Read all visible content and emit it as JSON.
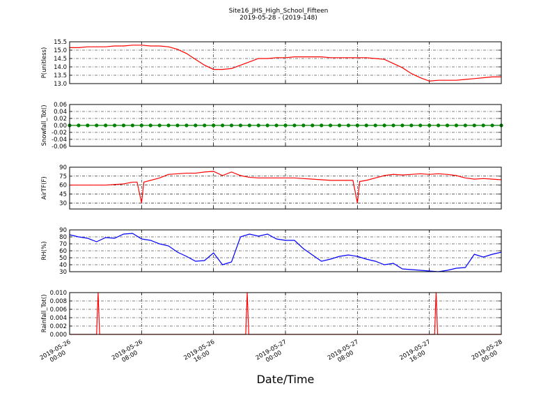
{
  "title": "Site16_JHS_High_School_Fifteen",
  "subtitle": "2019-05-28 - (2019-148)",
  "xlabel": "Date/Time",
  "xlim": [
    "2019-05-26 00:00",
    "2019-05-28 00:00"
  ],
  "xticks": [
    {
      "value": "2019-05-26 00:00",
      "label": [
        "2019-05-26",
        "00:00"
      ]
    },
    {
      "value": "2019-05-26 08:00",
      "label": [
        "2019-05-26",
        "08:00"
      ]
    },
    {
      "value": "2019-05-26 16:00",
      "label": [
        "2019-05-26",
        "16:00"
      ]
    },
    {
      "value": "2019-05-27 00:00",
      "label": [
        "2019-05-27",
        "00:00"
      ]
    },
    {
      "value": "2019-05-27 08:00",
      "label": [
        "2019-05-27",
        "08:00"
      ]
    },
    {
      "value": "2019-05-27 16:00",
      "label": [
        "2019-05-27",
        "16:00"
      ]
    },
    {
      "value": "2019-05-28 00:00",
      "label": [
        "2019-05-28",
        "00:00"
      ]
    }
  ],
  "chart_data": [
    {
      "type": "line",
      "ylabel": "P(unitless)",
      "grid": true,
      "ylim": [
        13,
        15.5
      ],
      "yticks": [
        {
          "value": 13,
          "label": "13.0"
        },
        13.5,
        {
          "value": 14,
          "label": "14.0"
        },
        14.5,
        {
          "value": 15,
          "label": "15.0"
        },
        15.5
      ],
      "x": [
        "2019-05-26 00:00",
        "2019-05-26 01:00",
        "2019-05-26 02:00",
        "2019-05-26 03:00",
        "2019-05-26 04:00",
        "2019-05-26 05:00",
        "2019-05-26 06:00",
        "2019-05-26 07:00",
        "2019-05-26 08:00",
        "2019-05-26 09:00",
        "2019-05-26 10:00",
        "2019-05-26 11:00",
        "2019-05-26 12:00",
        "2019-05-26 13:00",
        "2019-05-26 14:00",
        "2019-05-26 15:00",
        "2019-05-26 16:00",
        "2019-05-26 17:00",
        "2019-05-26 18:00",
        "2019-05-26 19:00",
        "2019-05-26 20:00",
        "2019-05-26 21:00",
        "2019-05-26 22:00",
        "2019-05-26 23:00",
        "2019-05-27 00:00",
        "2019-05-27 01:00",
        "2019-05-27 02:00",
        "2019-05-27 03:00",
        "2019-05-27 04:00",
        "2019-05-27 05:00",
        "2019-05-27 06:00",
        "2019-05-27 07:00",
        "2019-05-27 08:00",
        "2019-05-27 09:00",
        "2019-05-27 10:00",
        "2019-05-27 11:00",
        "2019-05-27 12:00",
        "2019-05-27 13:00",
        "2019-05-27 14:00",
        "2019-05-27 15:00",
        "2019-05-27 16:00",
        "2019-05-27 17:00",
        "2019-05-27 18:00",
        "2019-05-27 19:00",
        "2019-05-27 20:00",
        "2019-05-27 21:00",
        "2019-05-27 22:00",
        "2019-05-27 23:00",
        "2019-05-28 00:00"
      ],
      "series": [
        {
          "color": "#ff0000",
          "values": [
            15.15,
            15.15,
            15.2,
            15.2,
            15.2,
            15.25,
            15.25,
            15.3,
            15.3,
            15.25,
            15.25,
            15.2,
            15.05,
            14.8,
            14.45,
            14.1,
            13.85,
            13.85,
            13.9,
            14.1,
            14.3,
            14.5,
            14.5,
            14.55,
            14.55,
            14.6,
            14.6,
            14.6,
            14.6,
            14.55,
            14.55,
            14.55,
            14.55,
            14.55,
            14.5,
            14.45,
            14.2,
            13.95,
            13.6,
            13.35,
            13.15,
            13.2,
            13.2,
            13.2,
            13.25,
            13.3,
            13.35,
            13.4,
            13.4
          ]
        }
      ]
    },
    {
      "type": "line",
      "ylabel": "Snowfall_Tot()",
      "grid": true,
      "ylim": [
        -0.06,
        0.06
      ],
      "yticks": [
        -0.06,
        -0.04,
        -0.02,
        {
          "value": 0,
          "label": "0.00"
        },
        0.02,
        0.04,
        0.06
      ],
      "x": [
        "2019-05-26 00:00",
        "2019-05-26 01:00",
        "2019-05-26 02:00",
        "2019-05-26 03:00",
        "2019-05-26 04:00",
        "2019-05-26 05:00",
        "2019-05-26 06:00",
        "2019-05-26 07:00",
        "2019-05-26 08:00",
        "2019-05-26 09:00",
        "2019-05-26 10:00",
        "2019-05-26 11:00",
        "2019-05-26 12:00",
        "2019-05-26 13:00",
        "2019-05-26 14:00",
        "2019-05-26 15:00",
        "2019-05-26 16:00",
        "2019-05-26 17:00",
        "2019-05-26 18:00",
        "2019-05-26 19:00",
        "2019-05-26 20:00",
        "2019-05-26 21:00",
        "2019-05-26 22:00",
        "2019-05-26 23:00",
        "2019-05-27 00:00",
        "2019-05-27 01:00",
        "2019-05-27 02:00",
        "2019-05-27 03:00",
        "2019-05-27 04:00",
        "2019-05-27 05:00",
        "2019-05-27 06:00",
        "2019-05-27 07:00",
        "2019-05-27 08:00",
        "2019-05-27 09:00",
        "2019-05-27 10:00",
        "2019-05-27 11:00",
        "2019-05-27 12:00",
        "2019-05-27 13:00",
        "2019-05-27 14:00",
        "2019-05-27 15:00",
        "2019-05-27 16:00",
        "2019-05-27 17:00",
        "2019-05-27 18:00",
        "2019-05-27 19:00",
        "2019-05-27 20:00",
        "2019-05-27 21:00",
        "2019-05-27 22:00",
        "2019-05-27 23:00",
        "2019-05-28 00:00"
      ],
      "series": [
        {
          "color": "#008000",
          "marker": "o",
          "values": [
            0,
            0,
            0,
            0,
            0,
            0,
            0,
            0,
            0,
            0,
            0,
            0,
            0,
            0,
            0,
            0,
            0,
            0,
            0,
            0,
            0,
            0,
            0,
            0,
            0,
            0,
            0,
            0,
            0,
            0,
            0,
            0,
            0,
            0,
            0,
            0,
            0,
            0,
            0,
            0,
            0,
            0,
            0,
            0,
            0,
            0,
            0,
            0,
            0
          ]
        }
      ]
    },
    {
      "type": "line",
      "ylabel": "AirTF(F)",
      "grid": true,
      "ylim": [
        20,
        90
      ],
      "yticks": [
        30,
        45,
        60,
        75,
        90
      ],
      "x": [
        "2019-05-26 00:00",
        "2019-05-26 01:00",
        "2019-05-26 02:00",
        "2019-05-26 03:00",
        "2019-05-26 04:00",
        "2019-05-26 05:00",
        "2019-05-26 06:00",
        "2019-05-26 07:00",
        "2019-05-26 07:30",
        "2019-05-26 08:00",
        "2019-05-26 08:15",
        "2019-05-26 09:00",
        "2019-05-26 10:00",
        "2019-05-26 11:00",
        "2019-05-26 12:00",
        "2019-05-26 13:00",
        "2019-05-26 14:00",
        "2019-05-26 15:00",
        "2019-05-26 16:00",
        "2019-05-26 17:00",
        "2019-05-26 18:00",
        "2019-05-26 19:00",
        "2019-05-26 20:00",
        "2019-05-26 21:00",
        "2019-05-26 22:00",
        "2019-05-26 23:00",
        "2019-05-27 00:00",
        "2019-05-27 01:00",
        "2019-05-27 02:00",
        "2019-05-27 03:00",
        "2019-05-27 04:00",
        "2019-05-27 05:00",
        "2019-05-27 06:00",
        "2019-05-27 07:00",
        "2019-05-27 07:30",
        "2019-05-27 08:00",
        "2019-05-27 08:15",
        "2019-05-27 09:00",
        "2019-05-27 10:00",
        "2019-05-27 11:00",
        "2019-05-27 12:00",
        "2019-05-27 13:00",
        "2019-05-27 14:00",
        "2019-05-27 15:00",
        "2019-05-27 16:00",
        "2019-05-27 17:00",
        "2019-05-27 18:00",
        "2019-05-27 19:00",
        "2019-05-27 20:00",
        "2019-05-27 21:00",
        "2019-05-27 22:00",
        "2019-05-27 23:00",
        "2019-05-28 00:00"
      ],
      "series": [
        {
          "color": "#ff0000",
          "values": [
            60,
            60,
            60,
            60,
            60,
            61,
            62,
            65,
            65,
            30,
            65,
            68,
            72,
            78,
            79,
            80,
            80,
            82,
            83,
            76,
            82,
            76,
            73,
            72,
            72,
            72,
            72,
            72,
            71,
            70,
            69,
            68,
            68,
            68,
            68,
            30,
            66,
            68,
            72,
            76,
            78,
            77,
            78,
            79,
            78,
            79,
            78,
            76,
            72,
            70,
            71,
            70,
            69
          ]
        }
      ]
    },
    {
      "type": "line",
      "ylabel": "RH(%)",
      "grid": true,
      "ylim": [
        30,
        90
      ],
      "yticks": [
        30,
        40,
        50,
        60,
        70,
        80,
        90
      ],
      "x": [
        "2019-05-26 00:00",
        "2019-05-26 01:00",
        "2019-05-26 02:00",
        "2019-05-26 03:00",
        "2019-05-26 04:00",
        "2019-05-26 05:00",
        "2019-05-26 06:00",
        "2019-05-26 07:00",
        "2019-05-26 08:00",
        "2019-05-26 09:00",
        "2019-05-26 10:00",
        "2019-05-26 11:00",
        "2019-05-26 12:00",
        "2019-05-26 13:00",
        "2019-05-26 14:00",
        "2019-05-26 15:00",
        "2019-05-26 16:00",
        "2019-05-26 17:00",
        "2019-05-26 18:00",
        "2019-05-26 19:00",
        "2019-05-26 20:00",
        "2019-05-26 21:00",
        "2019-05-26 22:00",
        "2019-05-26 23:00",
        "2019-05-27 00:00",
        "2019-05-27 01:00",
        "2019-05-27 02:00",
        "2019-05-27 03:00",
        "2019-05-27 04:00",
        "2019-05-27 05:00",
        "2019-05-27 06:00",
        "2019-05-27 07:00",
        "2019-05-27 08:00",
        "2019-05-27 09:00",
        "2019-05-27 10:00",
        "2019-05-27 11:00",
        "2019-05-27 12:00",
        "2019-05-27 13:00",
        "2019-05-27 14:00",
        "2019-05-27 15:00",
        "2019-05-27 16:00",
        "2019-05-27 17:00",
        "2019-05-27 18:00",
        "2019-05-27 19:00",
        "2019-05-27 20:00",
        "2019-05-27 21:00",
        "2019-05-27 22:00",
        "2019-05-27 23:00",
        "2019-05-28 00:00"
      ],
      "series": [
        {
          "color": "#0000ff",
          "values": [
            83,
            80,
            78,
            73,
            79,
            78,
            84,
            85,
            77,
            75,
            70,
            67,
            58,
            52,
            45,
            46,
            57,
            40,
            44,
            80,
            84,
            81,
            84,
            77,
            75,
            75,
            63,
            54,
            45,
            48,
            52,
            54,
            52,
            48,
            45,
            40,
            42,
            34,
            33,
            32,
            31,
            30,
            32,
            35,
            36,
            55,
            51,
            55,
            58
          ]
        }
      ]
    },
    {
      "type": "line",
      "ylabel": "Rainfall_Tot()",
      "grid": true,
      "ylim": [
        0,
        0.01
      ],
      "yticks": [
        {
          "value": 0,
          "label": "0.000"
        },
        {
          "value": 0.002,
          "label": "0.002"
        },
        {
          "value": 0.004,
          "label": "0.004"
        },
        {
          "value": 0.006,
          "label": "0.006"
        },
        {
          "value": 0.008,
          "label": "0.008"
        },
        {
          "value": 0.01,
          "label": "0.010"
        }
      ],
      "x": [
        "2019-05-26 00:00",
        "2019-05-26 03:00",
        "2019-05-26 03:10",
        "2019-05-26 03:20",
        "2019-05-26 19:35",
        "2019-05-26 19:45",
        "2019-05-26 19:55",
        "2019-05-27 16:35",
        "2019-05-27 16:45",
        "2019-05-27 16:55",
        "2019-05-28 00:00"
      ],
      "series": [
        {
          "color": "#ff0000",
          "values": [
            0,
            0,
            0.01,
            0,
            0,
            0.01,
            0,
            0,
            0.01,
            0,
            0
          ]
        }
      ]
    }
  ]
}
